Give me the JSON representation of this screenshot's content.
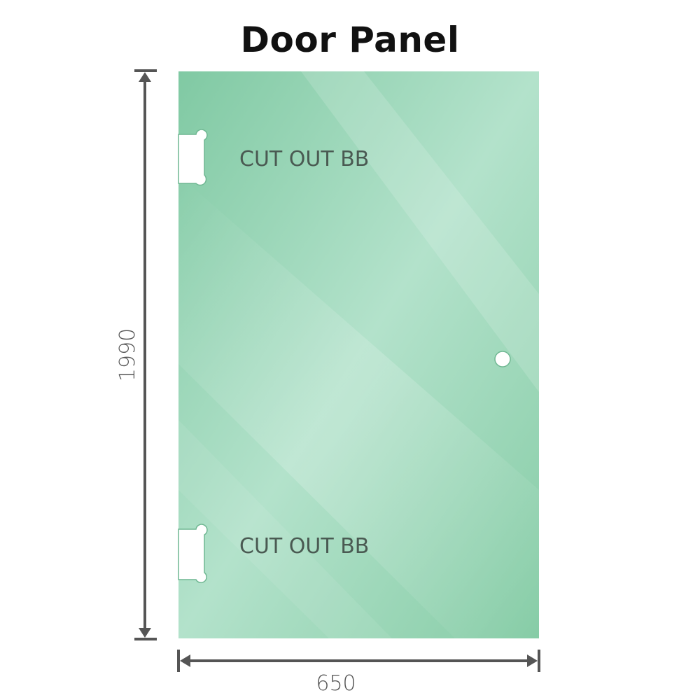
{
  "title": "Door Panel",
  "labels": {
    "cutout_top": "CUT OUT BB",
    "cutout_bottom": "CUT OUT BB"
  },
  "dimensions": {
    "height": "1990",
    "width": "650"
  },
  "colors": {
    "glass": "#8fd0ac",
    "dimension_line": "#555555"
  }
}
